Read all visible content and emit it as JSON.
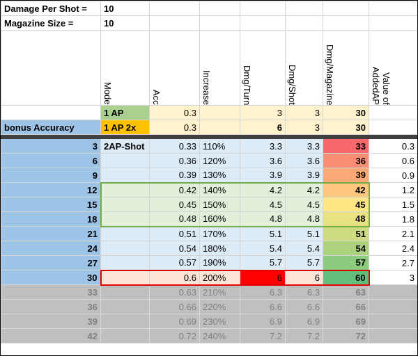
{
  "params": [
    {
      "label": "Damage Per Shot =",
      "value": "10"
    },
    {
      "label": "Magazine Size =",
      "value": "10"
    }
  ],
  "headers": [
    "Mode",
    "Acc",
    "Increase",
    "Dmg/Turn",
    "Dmg/Shot",
    "Dmg/Magazine",
    "Value of AddedAP"
  ],
  "base_rows": [
    {
      "mode": "1 AP",
      "acc": 0.3,
      "dmg_turn": 3,
      "dmg_shot": 3,
      "dmg_mag": 30
    },
    {
      "bonus": "bonus Accuracy",
      "mode": "1 AP 2x",
      "acc": 0.3,
      "dmg_turn": 6,
      "dmg_shot": 3,
      "dmg_mag": 30
    }
  ],
  "rows": [
    {
      "bonus": 3,
      "mode": "2AP-Shot",
      "acc": 0.33,
      "increase": "110%",
      "dmg_turn": 3.3,
      "dmg_shot": 3.3,
      "dmg_mag": 33,
      "value": 0.3
    },
    {
      "bonus": 6,
      "acc": 0.36,
      "increase": "120%",
      "dmg_turn": 3.6,
      "dmg_shot": 3.6,
      "dmg_mag": 36,
      "value": 0.6
    },
    {
      "bonus": 9,
      "acc": 0.39,
      "increase": "130%",
      "dmg_turn": 3.9,
      "dmg_shot": 3.9,
      "dmg_mag": 39,
      "value": 0.9
    },
    {
      "bonus": 12,
      "acc": 0.42,
      "increase": "140%",
      "dmg_turn": 4.2,
      "dmg_shot": 4.2,
      "dmg_mag": 42,
      "value": 1.2
    },
    {
      "bonus": 15,
      "acc": 0.45,
      "increase": "150%",
      "dmg_turn": 4.5,
      "dmg_shot": 4.5,
      "dmg_mag": 45,
      "value": 1.5
    },
    {
      "bonus": 18,
      "acc": 0.48,
      "increase": "160%",
      "dmg_turn": 4.8,
      "dmg_shot": 4.8,
      "dmg_mag": 48,
      "value": 1.8
    },
    {
      "bonus": 21,
      "acc": 0.51,
      "increase": "170%",
      "dmg_turn": 5.1,
      "dmg_shot": 5.1,
      "dmg_mag": 51,
      "value": 2.1
    },
    {
      "bonus": 24,
      "acc": 0.54,
      "increase": "180%",
      "dmg_turn": 5.4,
      "dmg_shot": 5.4,
      "dmg_mag": 54,
      "value": 2.4
    },
    {
      "bonus": 27,
      "acc": 0.57,
      "increase": "190%",
      "dmg_turn": 5.7,
      "dmg_shot": 5.7,
      "dmg_mag": 57,
      "value": 2.7
    },
    {
      "bonus": 30,
      "acc": 0.6,
      "increase": "200%",
      "dmg_turn": 6,
      "dmg_shot": 6,
      "dmg_mag": 60,
      "value": 3
    },
    {
      "bonus": 33,
      "acc": 0.63,
      "increase": "210%",
      "dmg_turn": 6.3,
      "dmg_shot": 6.3,
      "dmg_mag": 63
    },
    {
      "bonus": 36,
      "acc": 0.66,
      "increase": "220%",
      "dmg_turn": 6.6,
      "dmg_shot": 6.6,
      "dmg_mag": 66
    },
    {
      "bonus": 39,
      "acc": 0.69,
      "increase": "230%",
      "dmg_turn": 6.9,
      "dmg_shot": 6.9,
      "dmg_mag": 69
    },
    {
      "bonus": 42,
      "acc": 0.72,
      "increase": "240%",
      "dmg_turn": 7.2,
      "dmg_shot": 7.2,
      "dmg_mag": 72
    }
  ]
}
